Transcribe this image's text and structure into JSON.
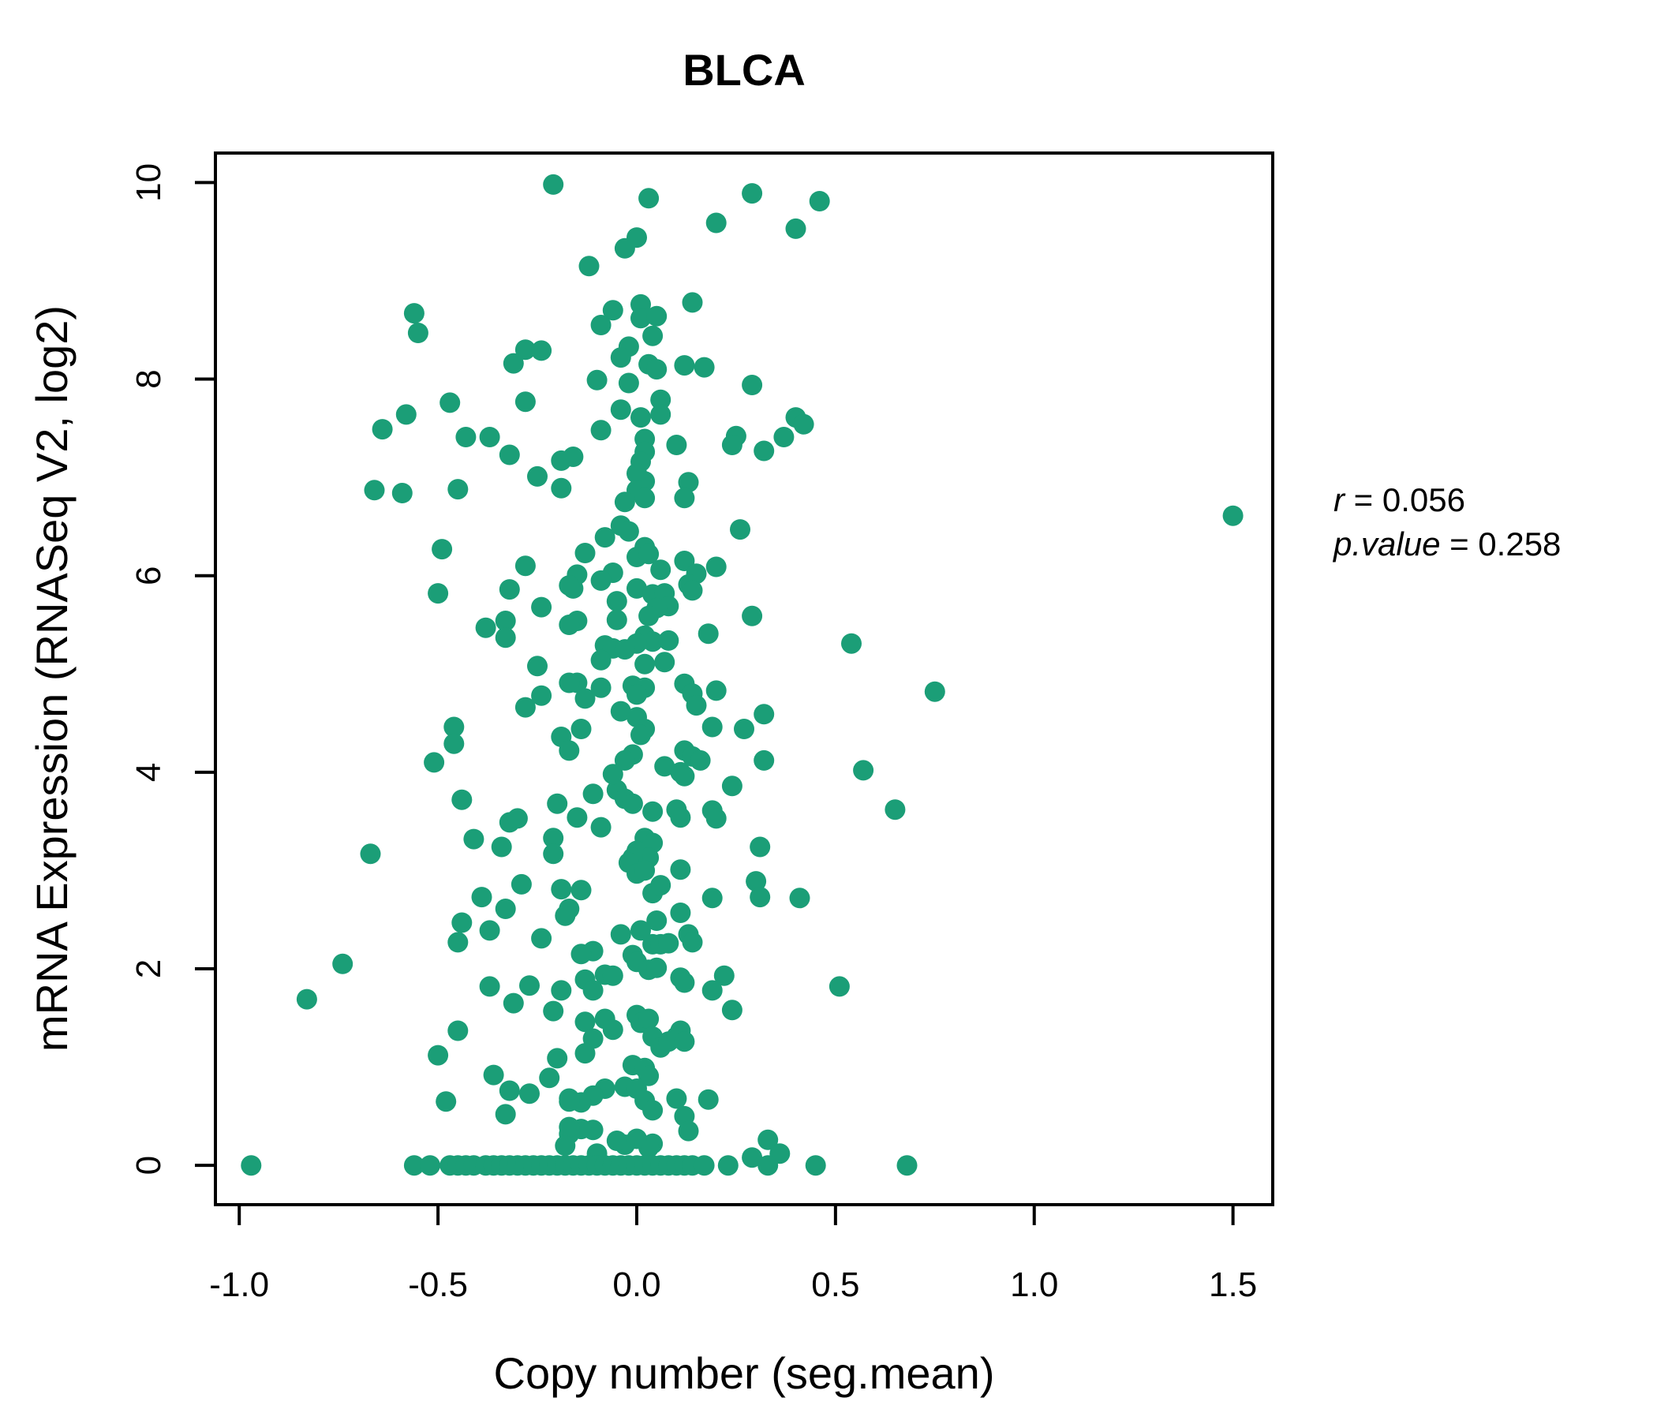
{
  "title": {
    "text": "BLCA",
    "color": "#1b9e77"
  },
  "annotation": {
    "line1_var": "r",
    "line1_val": " = 0.056",
    "line2_var": "p.value",
    "line2_val": " = 0.258"
  },
  "chart_data": {
    "type": "scatter",
    "title": "BLCA",
    "xlabel": "Copy number (seg.mean)",
    "ylabel": "mRNA Expression (RNASeq V2, log2)",
    "xlim": [
      -1.06,
      1.6
    ],
    "ylim": [
      -0.4,
      10.3
    ],
    "grid": "off",
    "legend": "none",
    "point_color": "#1b9e77",
    "x_ticks": [
      -1.0,
      -0.5,
      0.0,
      0.5,
      1.0,
      1.5
    ],
    "x_tick_labels": [
      "-1.0",
      "-0.5",
      "0.0",
      "0.5",
      "1.0",
      "1.5"
    ],
    "y_ticks": [
      0,
      2,
      4,
      6,
      8,
      10
    ],
    "y_tick_labels": [
      "0",
      "2",
      "4",
      "6",
      "8",
      "10"
    ],
    "points": [
      [
        -0.21,
        9.98
      ],
      [
        0.03,
        9.84
      ],
      [
        0.29,
        9.89
      ],
      [
        0.46,
        9.81
      ],
      [
        0.2,
        9.59
      ],
      [
        0.4,
        9.53
      ],
      [
        0.0,
        9.44
      ],
      [
        -0.03,
        9.33
      ],
      [
        -0.12,
        9.15
      ],
      [
        0.01,
        8.76
      ],
      [
        -0.06,
        8.7
      ],
      [
        0.14,
        8.78
      ],
      [
        0.01,
        8.62
      ],
      [
        0.05,
        8.64
      ],
      [
        -0.09,
        8.55
      ],
      [
        -0.56,
        8.67
      ],
      [
        -0.55,
        8.47
      ],
      [
        0.04,
        8.44
      ],
      [
        -0.28,
        8.3
      ],
      [
        -0.24,
        8.29
      ],
      [
        -0.31,
        8.16
      ],
      [
        -0.02,
        8.33
      ],
      [
        -0.04,
        8.22
      ],
      [
        0.03,
        8.15
      ],
      [
        0.05,
        8.1
      ],
      [
        0.12,
        8.14
      ],
      [
        0.17,
        8.12
      ],
      [
        -0.1,
        7.99
      ],
      [
        -0.02,
        7.96
      ],
      [
        0.29,
        7.94
      ],
      [
        -0.47,
        7.76
      ],
      [
        -0.28,
        7.77
      ],
      [
        0.06,
        7.79
      ],
      [
        -0.58,
        7.64
      ],
      [
        -0.04,
        7.69
      ],
      [
        0.01,
        7.61
      ],
      [
        0.06,
        7.64
      ],
      [
        -0.64,
        7.49
      ],
      [
        -0.09,
        7.48
      ],
      [
        -0.43,
        7.41
      ],
      [
        -0.37,
        7.41
      ],
      [
        0.02,
        7.39
      ],
      [
        0.1,
        7.33
      ],
      [
        0.25,
        7.42
      ],
      [
        0.24,
        7.33
      ],
      [
        0.4,
        7.61
      ],
      [
        0.42,
        7.54
      ],
      [
        0.37,
        7.41
      ],
      [
        0.32,
        7.27
      ],
      [
        -0.32,
        7.23
      ],
      [
        0.02,
        7.26
      ],
      [
        0.01,
        7.16
      ],
      [
        -0.25,
        7.01
      ],
      [
        -0.19,
        7.17
      ],
      [
        -0.16,
        7.21
      ],
      [
        0.0,
        7.04
      ],
      [
        -0.66,
        6.87
      ],
      [
        -0.59,
        6.84
      ],
      [
        -0.45,
        6.88
      ],
      [
        -0.19,
        6.89
      ],
      [
        0.02,
        6.96
      ],
      [
        0.13,
        6.95
      ],
      [
        0.0,
        6.87
      ],
      [
        0.02,
        6.79
      ],
      [
        0.12,
        6.79
      ],
      [
        -0.03,
        6.75
      ],
      [
        0.26,
        6.47
      ],
      [
        -0.04,
        6.51
      ],
      [
        -0.02,
        6.45
      ],
      [
        -0.08,
        6.39
      ],
      [
        -0.13,
        6.23
      ],
      [
        0.02,
        6.29
      ],
      [
        0.0,
        6.19
      ],
      [
        0.03,
        6.22
      ],
      [
        0.12,
        6.15
      ],
      [
        0.06,
        6.06
      ],
      [
        -0.06,
        6.03
      ],
      [
        -0.49,
        6.27
      ],
      [
        -0.28,
        6.1
      ],
      [
        1.5,
        6.61
      ],
      [
        0.2,
        6.09
      ],
      [
        0.15,
        6.02
      ],
      [
        -0.09,
        5.95
      ],
      [
        -0.15,
        6.01
      ],
      [
        -0.16,
        5.87
      ],
      [
        0.13,
        5.91
      ],
      [
        0.14,
        5.85
      ],
      [
        0.0,
        5.87
      ],
      [
        -0.05,
        5.74
      ],
      [
        0.04,
        5.81
      ],
      [
        0.07,
        5.82
      ],
      [
        0.08,
        5.69
      ],
      [
        0.05,
        5.67
      ],
      [
        0.03,
        5.59
      ],
      [
        -0.05,
        5.55
      ],
      [
        -0.15,
        5.54
      ],
      [
        0.29,
        5.59
      ],
      [
        0.18,
        5.41
      ],
      [
        0.02,
        5.39
      ],
      [
        0.04,
        5.33
      ],
      [
        0.08,
        5.34
      ],
      [
        0.0,
        5.31
      ],
      [
        -0.08,
        5.29
      ],
      [
        -0.06,
        5.26
      ],
      [
        -0.03,
        5.25
      ],
      [
        -0.09,
        5.14
      ],
      [
        0.02,
        5.1
      ],
      [
        0.07,
        5.12
      ],
      [
        0.54,
        5.31
      ],
      [
        -0.5,
        5.82
      ],
      [
        -0.32,
        5.86
      ],
      [
        -0.24,
        5.68
      ],
      [
        -0.38,
        5.47
      ],
      [
        -0.33,
        5.54
      ],
      [
        -0.33,
        5.37
      ],
      [
        -0.17,
        5.9
      ],
      [
        -0.17,
        5.5
      ],
      [
        -0.25,
        5.08
      ],
      [
        -0.15,
        4.91
      ],
      [
        -0.09,
        4.86
      ],
      [
        -0.13,
        4.75
      ],
      [
        -0.01,
        4.88
      ],
      [
        0.02,
        4.86
      ],
      [
        0.0,
        4.79
      ],
      [
        0.12,
        4.9
      ],
      [
        0.14,
        4.8
      ],
      [
        0.15,
        4.68
      ],
      [
        0.2,
        4.83
      ],
      [
        -0.04,
        4.62
      ],
      [
        0.0,
        4.56
      ],
      [
        0.02,
        4.44
      ],
      [
        0.01,
        4.38
      ],
      [
        -0.14,
        4.44
      ],
      [
        0.19,
        4.46
      ],
      [
        0.27,
        4.44
      ],
      [
        0.32,
        4.59
      ],
      [
        0.12,
        4.22
      ],
      [
        0.14,
        4.16
      ],
      [
        -0.01,
        4.18
      ],
      [
        -0.03,
        4.12
      ],
      [
        0.07,
        4.06
      ],
      [
        0.11,
        4.0
      ],
      [
        0.16,
        4.12
      ],
      [
        0.32,
        4.12
      ],
      [
        0.57,
        4.02
      ],
      [
        -0.17,
        4.91
      ],
      [
        -0.24,
        4.78
      ],
      [
        -0.28,
        4.66
      ],
      [
        -0.46,
        4.46
      ],
      [
        -0.46,
        4.29
      ],
      [
        -0.51,
        4.1
      ],
      [
        -0.19,
        4.36
      ],
      [
        -0.17,
        4.22
      ],
      [
        0.75,
        4.82
      ],
      [
        0.12,
        3.96
      ],
      [
        0.24,
        3.86
      ],
      [
        -0.11,
        3.78
      ],
      [
        -0.05,
        3.82
      ],
      [
        -0.03,
        3.73
      ],
      [
        -0.01,
        3.68
      ],
      [
        0.04,
        3.6
      ],
      [
        -0.15,
        3.54
      ],
      [
        -0.09,
        3.44
      ],
      [
        0.1,
        3.62
      ],
      [
        0.11,
        3.54
      ],
      [
        0.19,
        3.61
      ],
      [
        0.2,
        3.53
      ],
      [
        0.65,
        3.62
      ],
      [
        0.31,
        3.24
      ],
      [
        0.02,
        3.33
      ],
      [
        0.04,
        3.28
      ],
      [
        0.0,
        3.2
      ],
      [
        0.03,
        3.13
      ],
      [
        -0.01,
        3.13
      ],
      [
        -0.44,
        3.72
      ],
      [
        -0.32,
        3.49
      ],
      [
        -0.3,
        3.53
      ],
      [
        -0.2,
        3.68
      ],
      [
        -0.41,
        3.32
      ],
      [
        -0.21,
        3.33
      ],
      [
        -0.34,
        3.24
      ],
      [
        -0.21,
        3.17
      ],
      [
        -0.67,
        3.17
      ],
      [
        -0.06,
        3.98
      ],
      [
        -0.02,
        3.08
      ],
      [
        -0.14,
        2.8
      ],
      [
        -0.17,
        2.61
      ],
      [
        -0.04,
        2.35
      ],
      [
        0.01,
        2.39
      ],
      [
        0.05,
        2.49
      ],
      [
        0.04,
        2.77
      ],
      [
        0.06,
        2.85
      ],
      [
        0.0,
        2.97
      ],
      [
        0.02,
        3.0
      ],
      [
        0.11,
        3.01
      ],
      [
        0.19,
        2.72
      ],
      [
        0.3,
        2.89
      ],
      [
        0.31,
        2.73
      ],
      [
        0.41,
        2.72
      ],
      [
        0.11,
        2.57
      ],
      [
        0.13,
        2.35
      ],
      [
        0.14,
        2.27
      ],
      [
        -0.11,
        2.18
      ],
      [
        -0.14,
        2.15
      ],
      [
        -0.29,
        2.86
      ],
      [
        -0.39,
        2.73
      ],
      [
        -0.33,
        2.61
      ],
      [
        -0.44,
        2.47
      ],
      [
        -0.37,
        2.39
      ],
      [
        -0.45,
        2.27
      ],
      [
        -0.24,
        2.31
      ],
      [
        -0.19,
        2.81
      ],
      [
        -0.18,
        2.54
      ],
      [
        -0.74,
        2.05
      ],
      [
        0.04,
        2.25
      ],
      [
        0.06,
        2.25
      ],
      [
        0.08,
        2.26
      ],
      [
        -0.01,
        2.14
      ],
      [
        0.0,
        2.07
      ],
      [
        -0.08,
        1.94
      ],
      [
        -0.06,
        1.93
      ],
      [
        -0.13,
        1.89
      ],
      [
        -0.11,
        1.78
      ],
      [
        0.03,
        1.99
      ],
      [
        0.05,
        2.01
      ],
      [
        0.11,
        1.91
      ],
      [
        0.12,
        1.86
      ],
      [
        0.22,
        1.93
      ],
      [
        0.19,
        1.78
      ],
      [
        0.24,
        1.58
      ],
      [
        0.51,
        1.82
      ],
      [
        -0.13,
        1.46
      ],
      [
        -0.08,
        1.49
      ],
      [
        -0.06,
        1.38
      ],
      [
        -0.11,
        1.29
      ],
      [
        -0.13,
        1.14
      ],
      [
        0.0,
        1.53
      ],
      [
        0.01,
        1.45
      ],
      [
        0.03,
        1.49
      ],
      [
        0.04,
        1.31
      ],
      [
        0.06,
        1.2
      ],
      [
        0.08,
        1.26
      ],
      [
        0.1,
        1.31
      ],
      [
        0.11,
        1.37
      ],
      [
        0.12,
        1.26
      ],
      [
        -0.83,
        1.69
      ],
      [
        -0.37,
        1.82
      ],
      [
        -0.27,
        1.83
      ],
      [
        -0.19,
        1.78
      ],
      [
        -0.31,
        1.65
      ],
      [
        -0.21,
        1.57
      ],
      [
        -0.45,
        1.37
      ],
      [
        -0.5,
        1.12
      ],
      [
        -0.2,
        1.09
      ],
      [
        -0.01,
        1.02
      ],
      [
        0.02,
        0.99
      ],
      [
        0.03,
        0.91
      ],
      [
        -0.03,
        0.8
      ],
      [
        0.0,
        0.78
      ],
      [
        -0.08,
        0.78
      ],
      [
        -0.11,
        0.71
      ],
      [
        -0.14,
        0.64
      ],
      [
        -0.17,
        0.68
      ],
      [
        0.02,
        0.66
      ],
      [
        0.04,
        0.56
      ],
      [
        0.1,
        0.68
      ],
      [
        0.18,
        0.67
      ],
      [
        0.12,
        0.5
      ],
      [
        0.13,
        0.35
      ],
      [
        -0.36,
        0.92
      ],
      [
        -0.22,
        0.89
      ],
      [
        -0.32,
        0.76
      ],
      [
        -0.27,
        0.73
      ],
      [
        -0.48,
        0.65
      ],
      [
        -0.33,
        0.52
      ],
      [
        -0.17,
        0.65
      ],
      [
        -0.17,
        0.32
      ],
      [
        0.33,
        0.26
      ],
      [
        -0.11,
        0.36
      ],
      [
        -0.14,
        0.37
      ],
      [
        -0.17,
        0.39
      ],
      [
        0.04,
        0.22
      ],
      [
        0.03,
        0.18
      ],
      [
        0.0,
        0.27
      ],
      [
        -0.03,
        0.21
      ],
      [
        -0.05,
        0.25
      ],
      [
        -0.1,
        0.12
      ],
      [
        -0.18,
        0.2
      ],
      [
        0.29,
        0.08
      ],
      [
        0.36,
        0.12
      ],
      [
        -0.97,
        0
      ],
      [
        -0.56,
        0
      ],
      [
        -0.52,
        0
      ],
      [
        -0.47,
        0
      ],
      [
        -0.45,
        0
      ],
      [
        -0.43,
        0
      ],
      [
        -0.41,
        0
      ],
      [
        -0.38,
        0
      ],
      [
        -0.36,
        0
      ],
      [
        -0.34,
        0
      ],
      [
        -0.32,
        0
      ],
      [
        -0.3,
        0
      ],
      [
        -0.28,
        0
      ],
      [
        -0.26,
        0
      ],
      [
        -0.24,
        0
      ],
      [
        -0.22,
        0
      ],
      [
        -0.2,
        0
      ],
      [
        -0.18,
        0
      ],
      [
        -0.16,
        0
      ],
      [
        -0.14,
        0
      ],
      [
        -0.12,
        0
      ],
      [
        -0.1,
        0
      ],
      [
        -0.08,
        0
      ],
      [
        -0.06,
        0
      ],
      [
        -0.04,
        0
      ],
      [
        -0.02,
        0
      ],
      [
        0.0,
        0
      ],
      [
        0.02,
        0
      ],
      [
        0.04,
        0
      ],
      [
        0.06,
        0
      ],
      [
        0.08,
        0
      ],
      [
        0.1,
        0
      ],
      [
        0.12,
        0
      ],
      [
        0.14,
        0
      ],
      [
        0.17,
        0
      ],
      [
        0.23,
        0
      ],
      [
        0.33,
        0
      ],
      [
        0.45,
        0
      ],
      [
        0.68,
        0
      ]
    ]
  }
}
